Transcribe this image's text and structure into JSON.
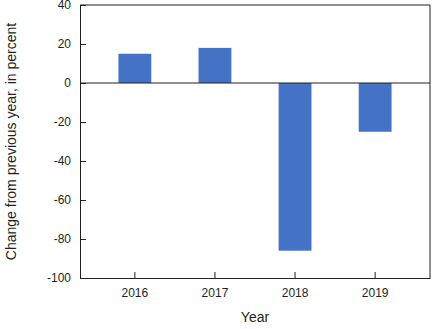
{
  "chart_data": {
    "type": "bar",
    "categories": [
      "2016",
      "2017",
      "2018",
      "2019"
    ],
    "values": [
      15,
      18,
      -86,
      -25
    ],
    "color": "#4472c4",
    "xlabel": "Year",
    "ylabel": "Change from previous year, in percent",
    "ylim": [
      -100,
      40
    ],
    "yticks": [
      -100,
      -80,
      -60,
      -40,
      -20,
      0,
      20,
      40
    ],
    "grid": false
  }
}
